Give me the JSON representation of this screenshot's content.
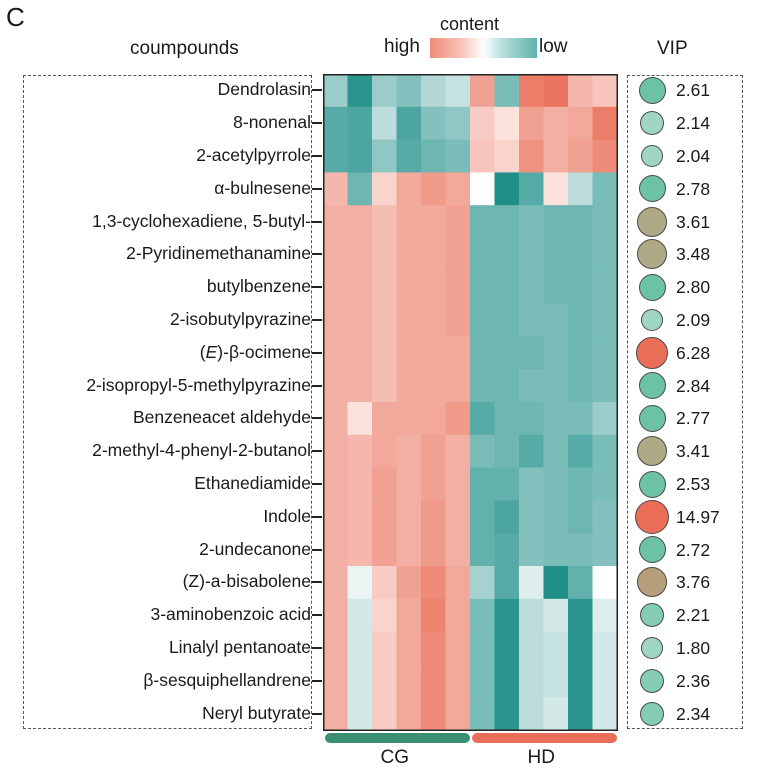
{
  "panel_letter": "C",
  "chart_data": {
    "type": "heatmap",
    "title": "",
    "row_header": "coumpounds",
    "legend": {
      "title": "content",
      "high_label": "high",
      "low_label": "low",
      "high_color": "#ee8b78",
      "mid_color": "#ffffff",
      "low_color": "#5fb2ab"
    },
    "vip_header": "VIP",
    "groups": [
      {
        "name": "CG",
        "columns": 6,
        "color": "#3a8f70"
      },
      {
        "name": "HD",
        "columns": 6,
        "color": "#ea6e57"
      }
    ],
    "rows": [
      {
        "label": "Dendrolasin",
        "vip": "2.61",
        "vip_value": 2.61,
        "values": [
          -0.45,
          -0.95,
          -0.45,
          -0.55,
          -0.35,
          -0.25,
          0.65,
          -0.6,
          0.9,
          0.95,
          0.5,
          0.4
        ]
      },
      {
        "label": "8-nonenal",
        "vip": "2.14",
        "vip_value": 2.14,
        "values": [
          -0.75,
          -0.8,
          -0.3,
          -0.8,
          -0.55,
          -0.5,
          0.35,
          0.2,
          0.65,
          0.55,
          0.6,
          0.9
        ]
      },
      {
        "label": "2-acetylpyrrole",
        "vip": "2.04",
        "vip_value": 2.04,
        "values": [
          -0.75,
          -0.8,
          -0.5,
          -0.75,
          -0.65,
          -0.6,
          0.4,
          0.3,
          0.75,
          0.55,
          0.65,
          0.8
        ]
      },
      {
        "label": "α-bulnesene",
        "vip": "2.78",
        "vip_value": 2.78,
        "values": [
          0.5,
          -0.65,
          0.3,
          0.6,
          0.7,
          0.6,
          0.0,
          -1.0,
          -0.75,
          0.2,
          -0.3,
          -0.6
        ]
      },
      {
        "label": "1,3-cyclohexadiene, 5-butyl-",
        "vip": "3.61",
        "vip_value": 3.61,
        "values": [
          0.55,
          0.55,
          0.45,
          0.6,
          0.6,
          0.65,
          -0.65,
          -0.65,
          -0.6,
          -0.65,
          -0.65,
          -0.6
        ]
      },
      {
        "label": "2-Pyridinemethanamine",
        "vip": "3.48",
        "vip_value": 3.48,
        "values": [
          0.55,
          0.55,
          0.45,
          0.6,
          0.6,
          0.65,
          -0.65,
          -0.65,
          -0.6,
          -0.65,
          -0.65,
          -0.6
        ]
      },
      {
        "label": "butylbenzene",
        "vip": "2.80",
        "vip_value": 2.8,
        "values": [
          0.55,
          0.55,
          0.45,
          0.6,
          0.6,
          0.65,
          -0.65,
          -0.65,
          -0.6,
          -0.65,
          -0.65,
          -0.6
        ]
      },
      {
        "label": "2-isobutylpyrazine",
        "vip": "2.09",
        "vip_value": 2.09,
        "values": [
          0.55,
          0.55,
          0.45,
          0.6,
          0.6,
          0.65,
          -0.65,
          -0.65,
          -0.6,
          -0.6,
          -0.65,
          -0.6
        ]
      },
      {
        "label": "(E)-β-ocimene",
        "vip": "6.28",
        "vip_value": 6.28,
        "values": [
          0.55,
          0.55,
          0.45,
          0.6,
          0.6,
          0.6,
          -0.65,
          -0.65,
          -0.65,
          -0.6,
          -0.65,
          -0.6
        ]
      },
      {
        "label": "2-isopropyl-5-methylpyrazine",
        "vip": "2.84",
        "vip_value": 2.84,
        "values": [
          0.55,
          0.55,
          0.45,
          0.6,
          0.6,
          0.6,
          -0.65,
          -0.65,
          -0.6,
          -0.6,
          -0.65,
          -0.6
        ]
      },
      {
        "label": "Benzeneacet aldehyde",
        "vip": "2.77",
        "vip_value": 2.77,
        "values": [
          0.55,
          0.2,
          0.6,
          0.6,
          0.6,
          0.7,
          -0.75,
          -0.65,
          -0.65,
          -0.6,
          -0.6,
          -0.45
        ]
      },
      {
        "label": "2-methyl-4-phenyl-2-butanol",
        "vip": "3.41",
        "vip_value": 3.41,
        "values": [
          0.55,
          0.5,
          0.6,
          0.55,
          0.65,
          0.55,
          -0.6,
          -0.65,
          -0.75,
          -0.6,
          -0.75,
          -0.6
        ]
      },
      {
        "label": "Ethanediamide",
        "vip": "2.53",
        "vip_value": 2.53,
        "values": [
          0.55,
          0.5,
          0.65,
          0.55,
          0.65,
          0.55,
          -0.7,
          -0.7,
          -0.55,
          -0.6,
          -0.65,
          -0.6
        ]
      },
      {
        "label": "Indole",
        "vip": "14.97",
        "vip_value": 14.97,
        "values": [
          0.55,
          0.5,
          0.65,
          0.55,
          0.7,
          0.55,
          -0.7,
          -0.8,
          -0.55,
          -0.6,
          -0.65,
          -0.55
        ]
      },
      {
        "label": "2-undecanone",
        "vip": "2.72",
        "vip_value": 2.72,
        "values": [
          0.55,
          0.5,
          0.65,
          0.55,
          0.7,
          0.55,
          -0.7,
          -0.75,
          -0.55,
          -0.6,
          -0.6,
          -0.55
        ]
      },
      {
        "label": "(Z)-a-bisabolene",
        "vip": "3.76",
        "vip_value": 3.76,
        "values": [
          0.55,
          -0.1,
          0.35,
          0.65,
          0.8,
          0.6,
          -0.4,
          -0.75,
          -0.15,
          -1.0,
          -0.7,
          0.0
        ]
      },
      {
        "label": "3-aminobenzoic acid",
        "vip": "2.21",
        "vip_value": 2.21,
        "values": [
          0.55,
          -0.2,
          0.3,
          0.6,
          0.85,
          0.6,
          -0.6,
          -0.95,
          -0.3,
          -0.2,
          -0.95,
          -0.15
        ]
      },
      {
        "label": "Linalyl pentanoate",
        "vip": "1.80",
        "vip_value": 1.8,
        "values": [
          0.55,
          -0.2,
          0.35,
          0.6,
          0.8,
          0.6,
          -0.6,
          -0.95,
          -0.3,
          -0.25,
          -0.95,
          -0.2
        ]
      },
      {
        "label": "β-sesquiphellandrene",
        "vip": "2.36",
        "vip_value": 2.36,
        "values": [
          0.55,
          -0.2,
          0.35,
          0.6,
          0.8,
          0.6,
          -0.6,
          -0.95,
          -0.3,
          -0.25,
          -0.95,
          -0.2
        ]
      },
      {
        "label": "Neryl butyrate",
        "vip": "2.34",
        "vip_value": 2.34,
        "values": [
          0.55,
          -0.2,
          0.35,
          0.6,
          0.8,
          0.6,
          -0.6,
          -0.95,
          -0.3,
          -0.2,
          -0.95,
          -0.2
        ]
      }
    ],
    "value_range": [
      -1,
      1
    ],
    "vip_colors": {
      "low": "#a8d8c8",
      "mid": "#b6a77e",
      "high": "#ea6e57"
    }
  }
}
